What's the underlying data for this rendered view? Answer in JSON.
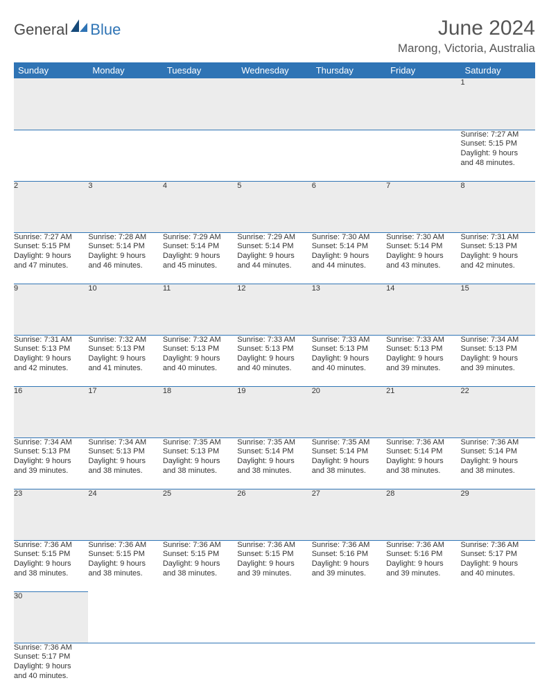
{
  "brand": {
    "general": "General",
    "blue": "Blue"
  },
  "title": "June 2024",
  "location": "Marong, Victoria, Australia",
  "colors": {
    "header_bg": "#2f74b5",
    "header_text": "#ffffff",
    "daynum_bg": "#ececec",
    "border": "#2f74b5",
    "text": "#333333"
  },
  "weekdays": [
    "Sunday",
    "Monday",
    "Tuesday",
    "Wednesday",
    "Thursday",
    "Friday",
    "Saturday"
  ],
  "weeks": [
    [
      null,
      null,
      null,
      null,
      null,
      null,
      {
        "n": "1",
        "sr": "Sunrise: 7:27 AM",
        "ss": "Sunset: 5:15 PM",
        "d1": "Daylight: 9 hours",
        "d2": "and 48 minutes."
      }
    ],
    [
      {
        "n": "2",
        "sr": "Sunrise: 7:27 AM",
        "ss": "Sunset: 5:15 PM",
        "d1": "Daylight: 9 hours",
        "d2": "and 47 minutes."
      },
      {
        "n": "3",
        "sr": "Sunrise: 7:28 AM",
        "ss": "Sunset: 5:14 PM",
        "d1": "Daylight: 9 hours",
        "d2": "and 46 minutes."
      },
      {
        "n": "4",
        "sr": "Sunrise: 7:29 AM",
        "ss": "Sunset: 5:14 PM",
        "d1": "Daylight: 9 hours",
        "d2": "and 45 minutes."
      },
      {
        "n": "5",
        "sr": "Sunrise: 7:29 AM",
        "ss": "Sunset: 5:14 PM",
        "d1": "Daylight: 9 hours",
        "d2": "and 44 minutes."
      },
      {
        "n": "6",
        "sr": "Sunrise: 7:30 AM",
        "ss": "Sunset: 5:14 PM",
        "d1": "Daylight: 9 hours",
        "d2": "and 44 minutes."
      },
      {
        "n": "7",
        "sr": "Sunrise: 7:30 AM",
        "ss": "Sunset: 5:14 PM",
        "d1": "Daylight: 9 hours",
        "d2": "and 43 minutes."
      },
      {
        "n": "8",
        "sr": "Sunrise: 7:31 AM",
        "ss": "Sunset: 5:13 PM",
        "d1": "Daylight: 9 hours",
        "d2": "and 42 minutes."
      }
    ],
    [
      {
        "n": "9",
        "sr": "Sunrise: 7:31 AM",
        "ss": "Sunset: 5:13 PM",
        "d1": "Daylight: 9 hours",
        "d2": "and 42 minutes."
      },
      {
        "n": "10",
        "sr": "Sunrise: 7:32 AM",
        "ss": "Sunset: 5:13 PM",
        "d1": "Daylight: 9 hours",
        "d2": "and 41 minutes."
      },
      {
        "n": "11",
        "sr": "Sunrise: 7:32 AM",
        "ss": "Sunset: 5:13 PM",
        "d1": "Daylight: 9 hours",
        "d2": "and 40 minutes."
      },
      {
        "n": "12",
        "sr": "Sunrise: 7:33 AM",
        "ss": "Sunset: 5:13 PM",
        "d1": "Daylight: 9 hours",
        "d2": "and 40 minutes."
      },
      {
        "n": "13",
        "sr": "Sunrise: 7:33 AM",
        "ss": "Sunset: 5:13 PM",
        "d1": "Daylight: 9 hours",
        "d2": "and 40 minutes."
      },
      {
        "n": "14",
        "sr": "Sunrise: 7:33 AM",
        "ss": "Sunset: 5:13 PM",
        "d1": "Daylight: 9 hours",
        "d2": "and 39 minutes."
      },
      {
        "n": "15",
        "sr": "Sunrise: 7:34 AM",
        "ss": "Sunset: 5:13 PM",
        "d1": "Daylight: 9 hours",
        "d2": "and 39 minutes."
      }
    ],
    [
      {
        "n": "16",
        "sr": "Sunrise: 7:34 AM",
        "ss": "Sunset: 5:13 PM",
        "d1": "Daylight: 9 hours",
        "d2": "and 39 minutes."
      },
      {
        "n": "17",
        "sr": "Sunrise: 7:34 AM",
        "ss": "Sunset: 5:13 PM",
        "d1": "Daylight: 9 hours",
        "d2": "and 38 minutes."
      },
      {
        "n": "18",
        "sr": "Sunrise: 7:35 AM",
        "ss": "Sunset: 5:13 PM",
        "d1": "Daylight: 9 hours",
        "d2": "and 38 minutes."
      },
      {
        "n": "19",
        "sr": "Sunrise: 7:35 AM",
        "ss": "Sunset: 5:14 PM",
        "d1": "Daylight: 9 hours",
        "d2": "and 38 minutes."
      },
      {
        "n": "20",
        "sr": "Sunrise: 7:35 AM",
        "ss": "Sunset: 5:14 PM",
        "d1": "Daylight: 9 hours",
        "d2": "and 38 minutes."
      },
      {
        "n": "21",
        "sr": "Sunrise: 7:36 AM",
        "ss": "Sunset: 5:14 PM",
        "d1": "Daylight: 9 hours",
        "d2": "and 38 minutes."
      },
      {
        "n": "22",
        "sr": "Sunrise: 7:36 AM",
        "ss": "Sunset: 5:14 PM",
        "d1": "Daylight: 9 hours",
        "d2": "and 38 minutes."
      }
    ],
    [
      {
        "n": "23",
        "sr": "Sunrise: 7:36 AM",
        "ss": "Sunset: 5:15 PM",
        "d1": "Daylight: 9 hours",
        "d2": "and 38 minutes."
      },
      {
        "n": "24",
        "sr": "Sunrise: 7:36 AM",
        "ss": "Sunset: 5:15 PM",
        "d1": "Daylight: 9 hours",
        "d2": "and 38 minutes."
      },
      {
        "n": "25",
        "sr": "Sunrise: 7:36 AM",
        "ss": "Sunset: 5:15 PM",
        "d1": "Daylight: 9 hours",
        "d2": "and 38 minutes."
      },
      {
        "n": "26",
        "sr": "Sunrise: 7:36 AM",
        "ss": "Sunset: 5:15 PM",
        "d1": "Daylight: 9 hours",
        "d2": "and 39 minutes."
      },
      {
        "n": "27",
        "sr": "Sunrise: 7:36 AM",
        "ss": "Sunset: 5:16 PM",
        "d1": "Daylight: 9 hours",
        "d2": "and 39 minutes."
      },
      {
        "n": "28",
        "sr": "Sunrise: 7:36 AM",
        "ss": "Sunset: 5:16 PM",
        "d1": "Daylight: 9 hours",
        "d2": "and 39 minutes."
      },
      {
        "n": "29",
        "sr": "Sunrise: 7:36 AM",
        "ss": "Sunset: 5:17 PM",
        "d1": "Daylight: 9 hours",
        "d2": "and 40 minutes."
      }
    ],
    [
      {
        "n": "30",
        "sr": "Sunrise: 7:36 AM",
        "ss": "Sunset: 5:17 PM",
        "d1": "Daylight: 9 hours",
        "d2": "and 40 minutes."
      },
      null,
      null,
      null,
      null,
      null,
      null
    ]
  ]
}
